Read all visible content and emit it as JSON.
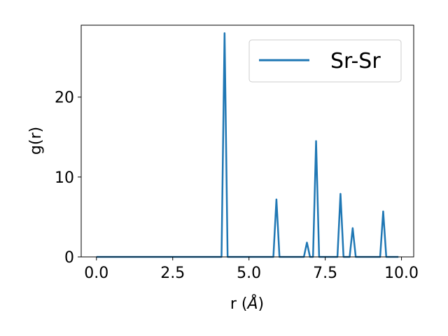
{
  "chart_data": {
    "type": "line",
    "title": "",
    "xlabel_main": "r (",
    "xlabel_unit": "Å",
    "xlabel_close": ")",
    "ylabel": "g(r)",
    "xlim": [
      -0.5,
      10.4
    ],
    "ylim": [
      0,
      29
    ],
    "xticks": [
      0.0,
      2.5,
      5.0,
      7.5,
      10.0
    ],
    "xtick_labels": [
      "0.0",
      "2.5",
      "5.0",
      "7.5",
      "10.0"
    ],
    "yticks": [
      0,
      10,
      20
    ],
    "ytick_labels": [
      "0",
      "10",
      "20"
    ],
    "grid": false,
    "legend_position": "top-right",
    "series": [
      {
        "name": "Sr-Sr",
        "color": "#1f77b4",
        "x": [
          0.0,
          4.1,
          4.2,
          4.3,
          5.8,
          5.9,
          6.0,
          6.8,
          6.9,
          7.0,
          7.1,
          7.2,
          7.3,
          7.9,
          8.0,
          8.1,
          8.3,
          8.4,
          8.5,
          9.3,
          9.4,
          9.5,
          9.9
        ],
        "y": [
          0,
          0,
          28.0,
          0,
          0,
          7.2,
          0,
          0,
          1.8,
          0,
          0,
          14.5,
          0,
          0,
          7.9,
          0,
          0,
          3.6,
          0,
          0,
          5.7,
          0,
          0
        ]
      }
    ]
  }
}
